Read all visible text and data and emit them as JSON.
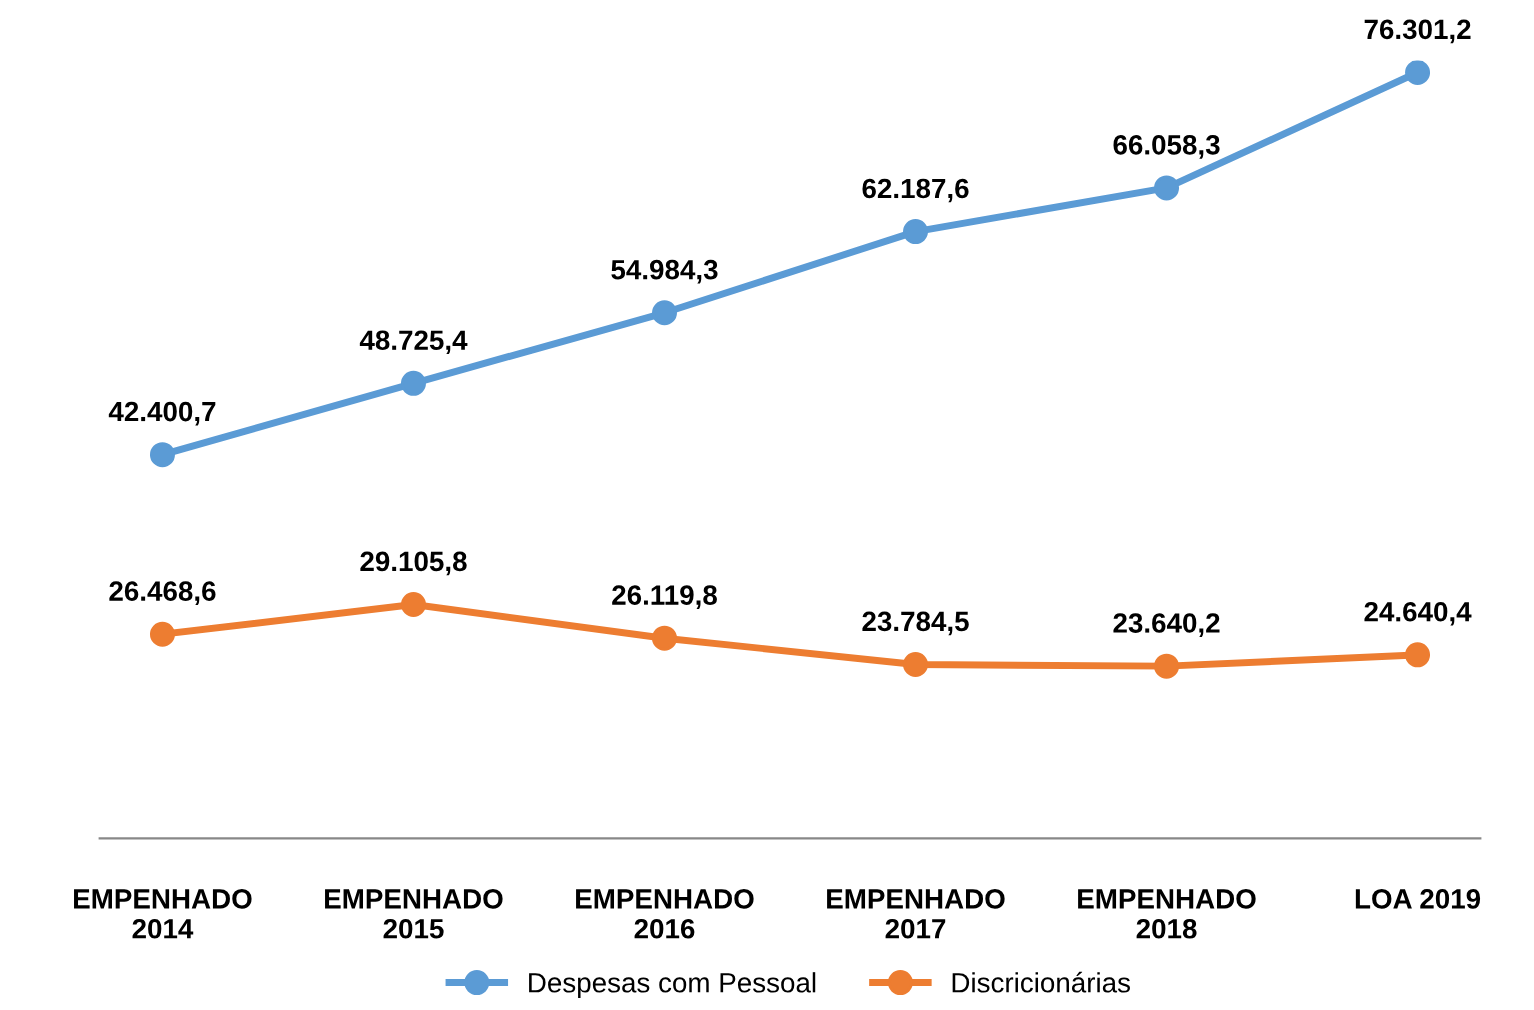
{
  "chart_data": {
    "type": "line",
    "categories": [
      "EMPENHADO\n2014",
      "EMPENHADO\n2015",
      "EMPENHADO\n2016",
      "EMPENHADO\n2017",
      "EMPENHADO\n2018",
      "LOA 2019"
    ],
    "series": [
      {
        "name": "Despesas com Pessoal",
        "color": "#5b9bd5",
        "values": [
          42400.7,
          48725.4,
          54984.3,
          62187.6,
          66058.3,
          76301.2
        ],
        "value_labels": [
          "42.400,7",
          "48.725,4",
          "54.984,3",
          "62.187,6",
          "66.058,3",
          "76.301,2"
        ]
      },
      {
        "name": "Discricionárias",
        "color": "#ed7d31",
        "values": [
          26468.6,
          29105.8,
          26119.8,
          23784.5,
          23640.2,
          24640.4
        ],
        "value_labels": [
          "26.468,6",
          "29.105,8",
          "26.119,8",
          "23.784,5",
          "23.640,2",
          "24.640,4"
        ]
      }
    ],
    "marker": "circle",
    "grid": false,
    "legend": "bottom",
    "tick_labels": "x"
  }
}
